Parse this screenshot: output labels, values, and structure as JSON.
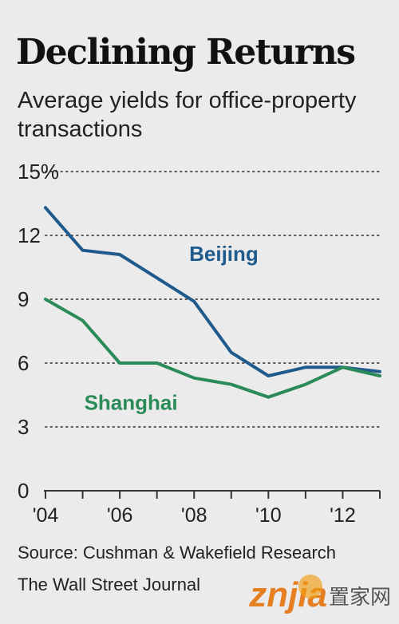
{
  "header": {
    "title": "Declining Returns",
    "subtitle": "Average yields for office-property transactions"
  },
  "footer": {
    "source": "Source: Cushman & Wakefield Research",
    "credit": "The Wall Street Journal"
  },
  "watermark": {
    "logo_text": "znjia",
    "cn_text": "置家网"
  },
  "colors": {
    "beijing": "#1f5a8c",
    "shanghai": "#2a8a58",
    "grid": "#555555",
    "axis": "#333333"
  },
  "chart_data": {
    "type": "line",
    "title": "Declining Returns",
    "subtitle": "Average yields for office-property transactions",
    "xlabel": "",
    "ylabel": "",
    "x": [
      2004,
      2005,
      2006,
      2007,
      2008,
      2009,
      2010,
      2011,
      2012,
      2013
    ],
    "x_tick_labels": [
      "'04",
      "'06",
      "'08",
      "'10",
      "'12"
    ],
    "x_tick_values": [
      2004,
      2006,
      2008,
      2010,
      2012
    ],
    "xlim": [
      2004,
      2013
    ],
    "y_tick_labels": [
      "15%",
      "12",
      "9",
      "6",
      "3",
      "0"
    ],
    "y_tick_values": [
      15,
      12,
      9,
      6,
      3,
      0
    ],
    "ylim": [
      0,
      15
    ],
    "grid": true,
    "series": [
      {
        "name": "Beijing",
        "values": [
          13.3,
          11.3,
          11.1,
          10.0,
          8.9,
          6.5,
          5.4,
          5.8,
          5.8,
          5.6
        ]
      },
      {
        "name": "Shanghai",
        "values": [
          9.0,
          8.0,
          6.0,
          6.0,
          5.3,
          5.0,
          4.4,
          5.0,
          5.8,
          5.4
        ]
      }
    ]
  }
}
